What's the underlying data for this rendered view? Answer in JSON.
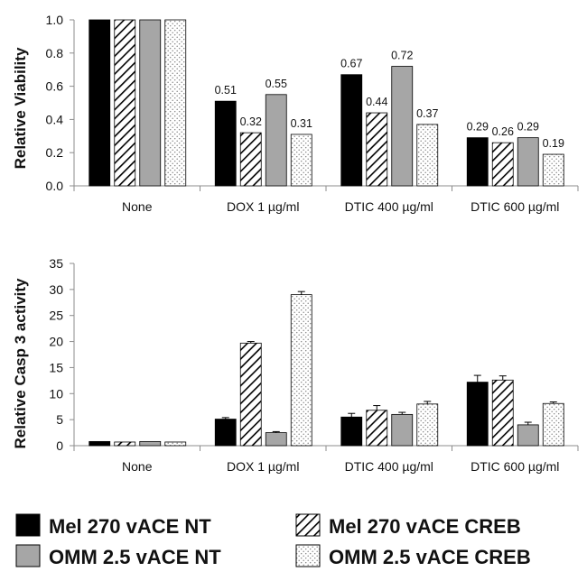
{
  "chart_data": [
    {
      "type": "bar",
      "categories": [
        "None",
        "DOX 1 µg/ml",
        "DTIC 400 µg/ml",
        "DTIC 600 µg/ml"
      ],
      "ylabel": "Relative Viability",
      "ylim": [
        0,
        1.0
      ],
      "yticks": [
        "0.0",
        "0.2",
        "0.4",
        "0.6",
        "0.8",
        "1.0"
      ],
      "ytick_values": [
        0,
        0.2,
        0.4,
        0.6,
        0.8,
        1.0
      ],
      "series": [
        {
          "name": "Mel 270 vACE NT",
          "values": [
            1.0,
            0.51,
            0.67,
            0.29
          ]
        },
        {
          "name": "Mel 270 vACE CREB",
          "values": [
            1.0,
            0.32,
            0.44,
            0.26
          ]
        },
        {
          "name": "OMM 2.5 vACE NT",
          "values": [
            1.0,
            0.55,
            0.72,
            0.29
          ]
        },
        {
          "name": "OMM 2.5 vACE CREB",
          "values": [
            1.0,
            0.31,
            0.37,
            0.19
          ]
        }
      ],
      "data_labels": [
        [
          null,
          "0.51",
          "0.67",
          "0.29"
        ],
        [
          null,
          "0.32",
          "0.44",
          "0.26"
        ],
        [
          null,
          "0.55",
          "0.72",
          "0.29"
        ],
        [
          null,
          "0.31",
          "0.37",
          "0.19"
        ]
      ]
    },
    {
      "type": "bar",
      "categories": [
        "None",
        "DOX 1 µg/ml",
        "DTIC 400 µg/ml",
        "DTIC 600 µg/ml"
      ],
      "ylabel": "Relative Casp 3 activity",
      "ylim": [
        0,
        35
      ],
      "yticks": [
        "0",
        "5",
        "10",
        "15",
        "20",
        "25",
        "30",
        "35"
      ],
      "ytick_values": [
        0,
        5,
        10,
        15,
        20,
        25,
        30,
        35
      ],
      "series": [
        {
          "name": "Mel 270 vACE NT",
          "values": [
            0.8,
            5.1,
            5.5,
            12.2
          ],
          "errors": [
            0,
            0.3,
            0.7,
            1.3
          ]
        },
        {
          "name": "Mel 270 vACE CREB",
          "values": [
            0.7,
            19.7,
            6.8,
            12.6
          ],
          "errors": [
            0,
            0.3,
            0.9,
            0.8
          ]
        },
        {
          "name": "OMM 2.5 vACE NT",
          "values": [
            0.8,
            2.5,
            6.0,
            4.0
          ],
          "errors": [
            0,
            0.2,
            0.4,
            0.5
          ]
        },
        {
          "name": "OMM 2.5 vACE CREB",
          "values": [
            0.7,
            29.0,
            8.0,
            8.1
          ],
          "errors": [
            0,
            0.6,
            0.5,
            0.3
          ]
        }
      ]
    }
  ],
  "legend": [
    {
      "label": "Mel 270 vACE NT",
      "fill": "solid-black"
    },
    {
      "label": "Mel 270 vACE CREB",
      "fill": "diagonal-hatch"
    },
    {
      "label": "OMM 2.5 vACE NT",
      "fill": "solid-gray"
    },
    {
      "label": "OMM 2.5 vACE CREB",
      "fill": "dotted"
    }
  ],
  "colors": {
    "mel270_nt": "#000000",
    "omm25_nt": "#a6a6a6",
    "hatch_bg": "#ffffff",
    "hatch_line": "#000000",
    "dots_bg": "#ffffff",
    "dots": "#9a9a9a",
    "axis": "#8c8c8c",
    "text": "#111111"
  }
}
